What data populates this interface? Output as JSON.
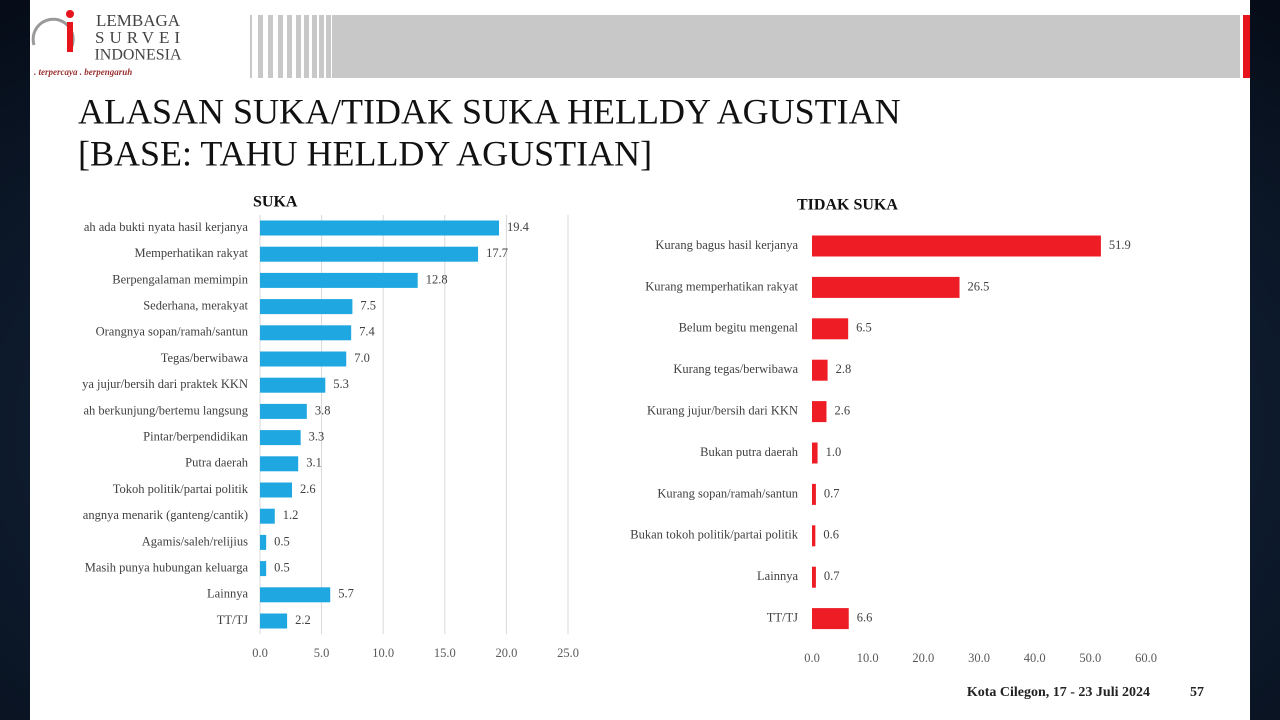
{
  "logo": {
    "line1": "LEMBAGA",
    "line2": "SURVEI",
    "line3": "INDONESIA",
    "tagline": ". terpercaya . berpengaruh"
  },
  "title": {
    "line1": "ALASAN SUKA/TIDAK SUKA HELLDY AGUSTIAN",
    "line2": "[BASE: TAHU HELLDY AGUSTIAN]"
  },
  "footer": {
    "location_date": "Kota Cilegon, 17 - 23 Juli 2024",
    "page": "57"
  },
  "chart_data": [
    {
      "type": "bar",
      "orientation": "horizontal",
      "title": "SUKA",
      "color": "#1ea7e1",
      "grid": true,
      "categories": [
        "ah ada bukti nyata hasil kerjanya",
        "Memperhatikan rakyat",
        "Berpengalaman memimpin",
        "Sederhana, merakyat",
        "Orangnya sopan/ramah/santun",
        "Tegas/berwibawa",
        "ya jujur/bersih dari praktek KKN",
        "ah berkunjung/bertemu langsung",
        "Pintar/berpendidikan",
        "Putra daerah",
        "Tokoh politik/partai politik",
        "angnya menarik (ganteng/cantik)",
        "Agamis/saleh/relijius",
        "Masih punya hubungan keluarga",
        "Lainnya",
        "TT/TJ"
      ],
      "values": [
        19.4,
        17.7,
        12.8,
        7.5,
        7.4,
        7.0,
        5.3,
        3.8,
        3.3,
        3.1,
        2.6,
        1.2,
        0.5,
        0.5,
        5.7,
        2.2
      ],
      "value_labels": [
        "19.4",
        "17.7",
        "12.8",
        "7.5",
        "7.4",
        "7.0",
        "5.3",
        "3.8",
        "3.3",
        "3.1",
        "2.6",
        "1.2",
        "0.5",
        "0.5",
        "5.7",
        "2.2"
      ],
      "xlim": [
        0,
        25
      ],
      "xticks": [
        {
          "value": 0,
          "label": "0.0"
        },
        {
          "value": 5,
          "label": "5.0"
        },
        {
          "value": 10,
          "label": "10.0"
        },
        {
          "value": 15,
          "label": "15.0"
        },
        {
          "value": 20,
          "label": "20.0"
        },
        {
          "value": 25,
          "label": "25.0"
        }
      ]
    },
    {
      "type": "bar",
      "orientation": "horizontal",
      "title": "TIDAK SUKA",
      "color": "#ee1c25",
      "grid": false,
      "categories": [
        "Kurang bagus hasil kerjanya",
        "Kurang memperhatikan rakyat",
        "Belum begitu mengenal",
        "Kurang tegas/berwibawa",
        "Kurang jujur/bersih dari KKN",
        "Bukan putra daerah",
        "Kurang sopan/ramah/santun",
        "Bukan tokoh politik/partai politik",
        "Lainnya",
        "TT/TJ"
      ],
      "values": [
        51.9,
        26.5,
        6.5,
        2.8,
        2.6,
        1.0,
        0.7,
        0.6,
        0.7,
        6.6
      ],
      "value_labels": [
        "51.9",
        "26.5",
        "6.5",
        "2.8",
        "2.6",
        "1.0",
        "0.7",
        "0.6",
        "0.7",
        "6.6"
      ],
      "xlim": [
        0,
        60
      ],
      "xticks": [
        {
          "value": 0,
          "label": "0.0"
        },
        {
          "value": 10,
          "label": "10.0"
        },
        {
          "value": 20,
          "label": "20.0"
        },
        {
          "value": 30,
          "label": "30.0"
        },
        {
          "value": 40,
          "label": "40.0"
        },
        {
          "value": 50,
          "label": "50.0"
        },
        {
          "value": 60,
          "label": "60.0"
        }
      ]
    }
  ]
}
